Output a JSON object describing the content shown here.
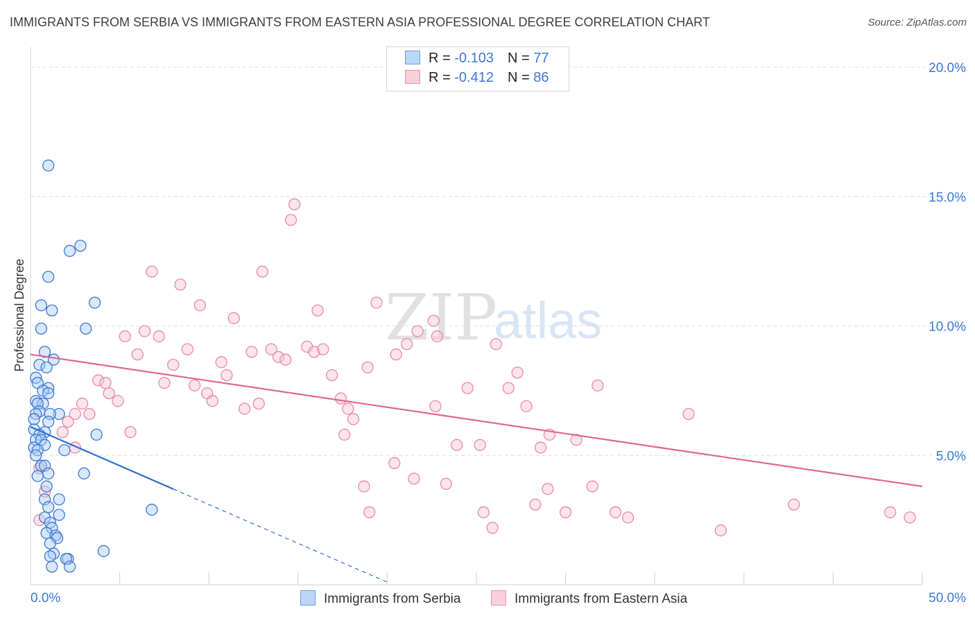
{
  "title": "IMMIGRANTS FROM SERBIA VS IMMIGRANTS FROM EASTERN ASIA PROFESSIONAL DEGREE CORRELATION CHART",
  "source": "Source: ZipAtlas.com",
  "watermark": {
    "zip": "ZIP",
    "atlas": "atlas"
  },
  "legend": {
    "rows": [
      {
        "r_label": "R = ",
        "r_value": "-0.103",
        "n_label": "N = ",
        "n_value": "77"
      },
      {
        "r_label": "R = ",
        "r_value": "-0.412",
        "n_label": "N = ",
        "n_value": "86"
      }
    ]
  },
  "colors": {
    "serbia_fill": "#a9c9f2",
    "serbia_stroke": "#3a78d4",
    "serbia_line": "#2f6fd0",
    "easia_fill": "#f7c3d3",
    "easia_stroke": "#e68aa8",
    "easia_line": "#e0668f",
    "grid": "#dddddd",
    "tick_text": "#3a78d4"
  },
  "chart_data": {
    "type": "scatter",
    "title": "IMMIGRANTS FROM SERBIA VS IMMIGRANTS FROM EASTERN ASIA PROFESSIONAL DEGREE CORRELATION CHART",
    "xlabel": "",
    "ylabel": "Professional Degree",
    "xlim": [
      0,
      50
    ],
    "ylim": [
      0,
      20
    ],
    "x_tick_labels": [
      "0.0%",
      "50.0%"
    ],
    "y_tick_labels": [
      "5.0%",
      "10.0%",
      "15.0%",
      "20.0%"
    ],
    "y_ticks": [
      5,
      10,
      15,
      20
    ],
    "grid": true,
    "legend_position": "top-center",
    "series": [
      {
        "name": "Immigrants from Serbia",
        "color": "#3a78d4",
        "r": -0.103,
        "n": 77,
        "trend": {
          "x0": 0,
          "y0": 6.1,
          "x1": 8,
          "y1": 3.7,
          "dash_to_x": 20,
          "dash_to_y": 0.1
        },
        "points": [
          [
            1.0,
            16.2
          ],
          [
            2.8,
            13.1
          ],
          [
            2.2,
            12.9
          ],
          [
            1.0,
            11.9
          ],
          [
            3.6,
            10.9
          ],
          [
            0.6,
            10.8
          ],
          [
            1.2,
            10.6
          ],
          [
            3.1,
            9.9
          ],
          [
            0.6,
            9.9
          ],
          [
            0.8,
            9.0
          ],
          [
            1.3,
            8.7
          ],
          [
            0.5,
            8.5
          ],
          [
            0.9,
            8.4
          ],
          [
            0.3,
            8.0
          ],
          [
            0.4,
            7.8
          ],
          [
            1.0,
            7.6
          ],
          [
            0.7,
            7.5
          ],
          [
            1.0,
            7.4
          ],
          [
            0.3,
            7.1
          ],
          [
            0.7,
            7.0
          ],
          [
            0.4,
            7.0
          ],
          [
            0.5,
            6.7
          ],
          [
            1.6,
            6.6
          ],
          [
            1.1,
            6.6
          ],
          [
            0.3,
            6.6
          ],
          [
            0.2,
            6.4
          ],
          [
            1.0,
            6.3
          ],
          [
            0.2,
            6.0
          ],
          [
            0.8,
            5.9
          ],
          [
            0.5,
            5.8
          ],
          [
            0.3,
            5.6
          ],
          [
            0.6,
            5.6
          ],
          [
            3.7,
            5.8
          ],
          [
            0.2,
            5.3
          ],
          [
            0.8,
            5.4
          ],
          [
            0.4,
            5.2
          ],
          [
            1.9,
            5.2
          ],
          [
            0.3,
            5.0
          ],
          [
            0.6,
            4.6
          ],
          [
            0.8,
            4.6
          ],
          [
            1.0,
            4.3
          ],
          [
            0.4,
            4.2
          ],
          [
            3.0,
            4.3
          ],
          [
            0.9,
            3.8
          ],
          [
            0.8,
            3.3
          ],
          [
            1.6,
            3.3
          ],
          [
            1.0,
            3.0
          ],
          [
            6.8,
            2.9
          ],
          [
            1.6,
            2.7
          ],
          [
            0.8,
            2.6
          ],
          [
            1.1,
            2.4
          ],
          [
            1.2,
            2.2
          ],
          [
            0.9,
            2.0
          ],
          [
            1.4,
            1.9
          ],
          [
            1.5,
            1.8
          ],
          [
            1.1,
            1.6
          ],
          [
            4.1,
            1.3
          ],
          [
            1.3,
            1.2
          ],
          [
            1.1,
            1.1
          ],
          [
            2.1,
            1.0
          ],
          [
            2.0,
            1.0
          ],
          [
            2.2,
            0.7
          ],
          [
            1.2,
            0.7
          ]
        ]
      },
      {
        "name": "Immigrants from Eastern Asia",
        "color": "#e68aa8",
        "r": -0.412,
        "n": 86,
        "trend": {
          "x0": 0,
          "y0": 8.9,
          "x1": 50,
          "y1": 3.8
        },
        "points": [
          [
            14.8,
            14.7
          ],
          [
            14.6,
            14.1
          ],
          [
            6.8,
            12.1
          ],
          [
            13.0,
            12.1
          ],
          [
            8.4,
            11.6
          ],
          [
            9.5,
            10.8
          ],
          [
            16.1,
            10.6
          ],
          [
            19.4,
            10.9
          ],
          [
            11.4,
            10.3
          ],
          [
            22.6,
            10.2
          ],
          [
            6.4,
            9.8
          ],
          [
            21.7,
            9.8
          ],
          [
            5.3,
            9.6
          ],
          [
            7.2,
            9.6
          ],
          [
            22.8,
            9.6
          ],
          [
            21.1,
            9.3
          ],
          [
            15.5,
            9.2
          ],
          [
            26.1,
            9.3
          ],
          [
            8.8,
            9.1
          ],
          [
            12.4,
            9.0
          ],
          [
            13.5,
            9.1
          ],
          [
            15.9,
            9.0
          ],
          [
            16.4,
            9.1
          ],
          [
            6.0,
            8.9
          ],
          [
            20.5,
            8.9
          ],
          [
            13.9,
            8.8
          ],
          [
            14.3,
            8.7
          ],
          [
            10.7,
            8.6
          ],
          [
            8.0,
            8.5
          ],
          [
            18.9,
            8.4
          ],
          [
            11.0,
            8.1
          ],
          [
            16.9,
            8.1
          ],
          [
            27.3,
            8.2
          ],
          [
            7.5,
            7.8
          ],
          [
            3.8,
            7.9
          ],
          [
            4.2,
            7.8
          ],
          [
            9.2,
            7.7
          ],
          [
            24.5,
            7.6
          ],
          [
            26.8,
            7.6
          ],
          [
            31.8,
            7.7
          ],
          [
            4.4,
            7.4
          ],
          [
            9.9,
            7.4
          ],
          [
            17.4,
            7.2
          ],
          [
            4.9,
            7.1
          ],
          [
            10.2,
            7.1
          ],
          [
            12.8,
            7.0
          ],
          [
            2.9,
            7.0
          ],
          [
            22.7,
            6.9
          ],
          [
            12.0,
            6.8
          ],
          [
            17.8,
            6.8
          ],
          [
            27.8,
            6.9
          ],
          [
            3.3,
            6.6
          ],
          [
            2.5,
            6.6
          ],
          [
            36.9,
            6.6
          ],
          [
            18.1,
            6.4
          ],
          [
            2.1,
            6.3
          ],
          [
            5.6,
            5.9
          ],
          [
            17.6,
            5.8
          ],
          [
            29.1,
            5.8
          ],
          [
            30.6,
            5.6
          ],
          [
            1.8,
            5.9
          ],
          [
            23.9,
            5.4
          ],
          [
            25.2,
            5.4
          ],
          [
            28.6,
            5.3
          ],
          [
            2.5,
            5.3
          ],
          [
            20.4,
            4.7
          ],
          [
            0.5,
            4.5
          ],
          [
            21.5,
            4.1
          ],
          [
            23.3,
            3.9
          ],
          [
            18.7,
            3.8
          ],
          [
            29.0,
            3.7
          ],
          [
            31.5,
            3.8
          ],
          [
            0.8,
            3.6
          ],
          [
            28.3,
            3.1
          ],
          [
            42.8,
            3.1
          ],
          [
            19.0,
            2.8
          ],
          [
            25.4,
            2.8
          ],
          [
            30.0,
            2.8
          ],
          [
            32.8,
            2.8
          ],
          [
            33.5,
            2.6
          ],
          [
            48.2,
            2.8
          ],
          [
            49.3,
            2.6
          ],
          [
            0.5,
            2.5
          ],
          [
            25.9,
            2.2
          ],
          [
            38.7,
            2.1
          ]
        ]
      }
    ]
  },
  "bottom_legend": {
    "serbia": "Immigrants from Serbia",
    "easia": "Immigrants from Eastern Asia"
  }
}
